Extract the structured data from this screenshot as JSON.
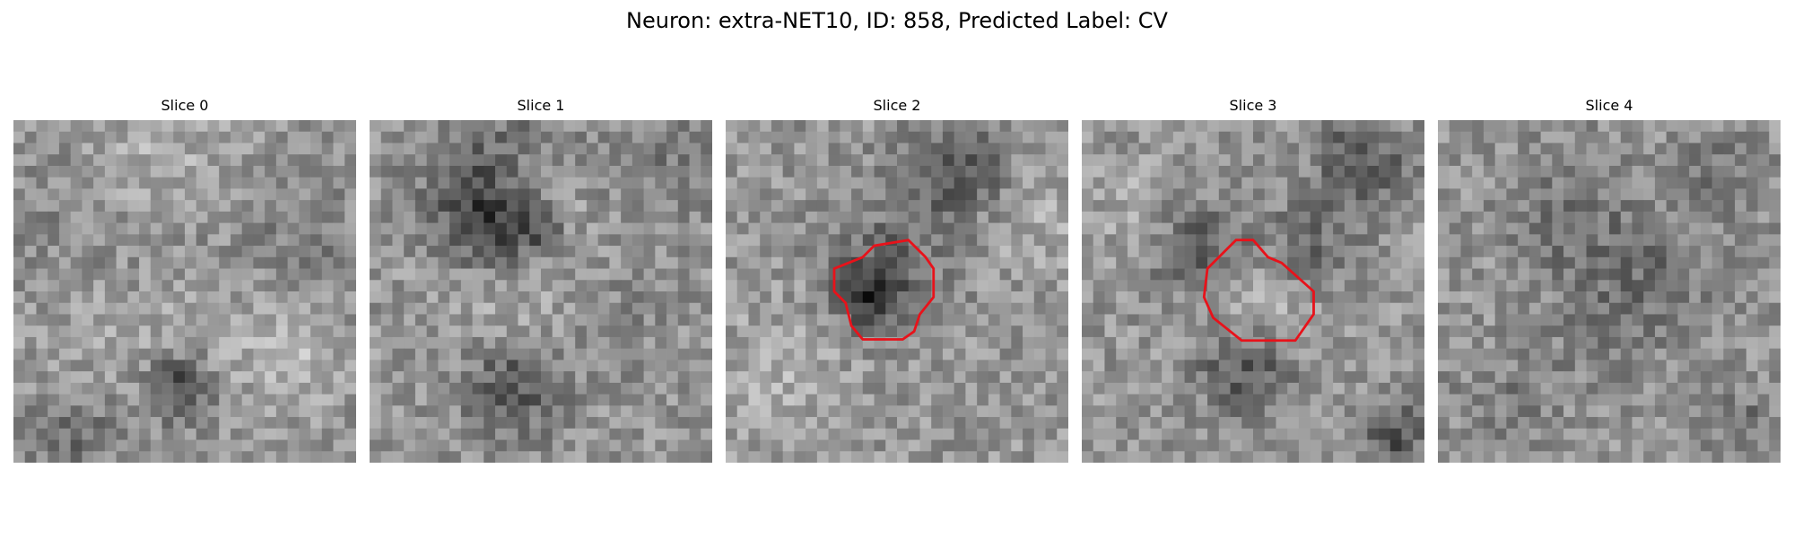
{
  "figure": {
    "title": "Neuron: extra-NET10, ID: 858, Predicted Label: CV"
  },
  "colors": {
    "background": "#ffffff",
    "contour": "#e8121a"
  },
  "slices": [
    {
      "label": "Slice 0",
      "has_contour": false
    },
    {
      "label": "Slice 1",
      "has_contour": false
    },
    {
      "label": "Slice 2",
      "has_contour": true
    },
    {
      "label": "Slice 3",
      "has_contour": true
    },
    {
      "label": "Slice 4",
      "has_contour": false
    }
  ]
}
